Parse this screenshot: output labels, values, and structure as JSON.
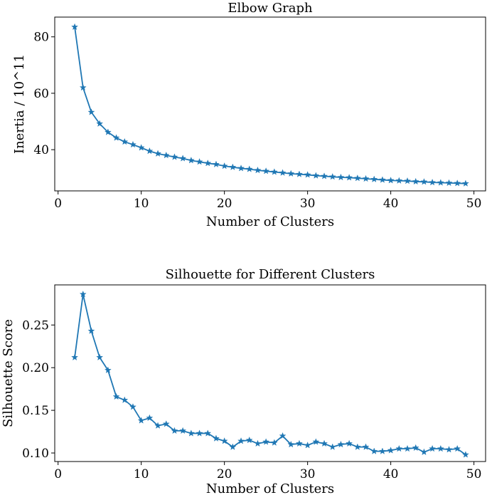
{
  "chart_data": [
    {
      "type": "line",
      "title": "Elbow Graph",
      "xlabel": "Number of Clusters",
      "ylabel": "Inertia / 10^11",
      "xlim": [
        -0.4,
        51.4
      ],
      "ylim": [
        25.4,
        87.0
      ],
      "xticks": [
        0,
        10,
        20,
        30,
        40,
        50
      ],
      "yticks": [
        40,
        60,
        80
      ],
      "grid": false,
      "marker": "star",
      "color": "#1f77b4",
      "series": [
        {
          "x": [
            2,
            3,
            4,
            5,
            6,
            7,
            8,
            9,
            10,
            11,
            12,
            13,
            14,
            15,
            16,
            17,
            18,
            19,
            20,
            21,
            22,
            23,
            24,
            25,
            26,
            27,
            28,
            29,
            30,
            31,
            32,
            33,
            34,
            35,
            36,
            37,
            38,
            39,
            40,
            41,
            42,
            43,
            44,
            45,
            46,
            47,
            48,
            49
          ],
          "values": [
            83.5,
            62.0,
            53.3,
            49.2,
            46.2,
            44.2,
            42.8,
            41.8,
            40.7,
            39.5,
            38.6,
            38.0,
            37.4,
            36.9,
            36.2,
            35.7,
            35.2,
            34.8,
            34.2,
            33.8,
            33.4,
            33.1,
            32.7,
            32.4,
            32.1,
            31.8,
            31.5,
            31.3,
            31.1,
            30.8,
            30.6,
            30.4,
            30.2,
            30.1,
            29.9,
            29.7,
            29.5,
            29.3,
            29.1,
            29.0,
            28.9,
            28.7,
            28.6,
            28.4,
            28.3,
            28.2,
            28.1,
            28.0
          ]
        }
      ]
    },
    {
      "type": "line",
      "title": "Silhouette for Different Clusters",
      "xlabel": "Number of Clusters",
      "ylabel": "Silhouette Score",
      "xlim": [
        -0.4,
        51.4
      ],
      "ylim": [
        0.09,
        0.297
      ],
      "xticks": [
        0,
        10,
        20,
        30,
        40,
        50
      ],
      "yticks": [
        0.1,
        0.15,
        0.2,
        0.25
      ],
      "grid": false,
      "marker": "star",
      "color": "#1f77b4",
      "series": [
        {
          "x": [
            2,
            3,
            4,
            5,
            6,
            7,
            8,
            9,
            10,
            11,
            12,
            13,
            14,
            15,
            16,
            17,
            18,
            19,
            20,
            21,
            22,
            23,
            24,
            25,
            26,
            27,
            28,
            29,
            30,
            31,
            32,
            33,
            34,
            35,
            36,
            37,
            38,
            39,
            40,
            41,
            42,
            43,
            44,
            45,
            46,
            47,
            48,
            49
          ],
          "values": [
            0.212,
            0.286,
            0.243,
            0.212,
            0.197,
            0.166,
            0.162,
            0.154,
            0.138,
            0.141,
            0.132,
            0.134,
            0.126,
            0.126,
            0.123,
            0.123,
            0.123,
            0.117,
            0.114,
            0.107,
            0.114,
            0.115,
            0.111,
            0.113,
            0.112,
            0.12,
            0.11,
            0.111,
            0.109,
            0.113,
            0.111,
            0.107,
            0.11,
            0.111,
            0.107,
            0.107,
            0.102,
            0.102,
            0.103,
            0.105,
            0.105,
            0.106,
            0.101,
            0.105,
            0.105,
            0.104,
            0.105,
            0.098
          ]
        }
      ]
    }
  ]
}
